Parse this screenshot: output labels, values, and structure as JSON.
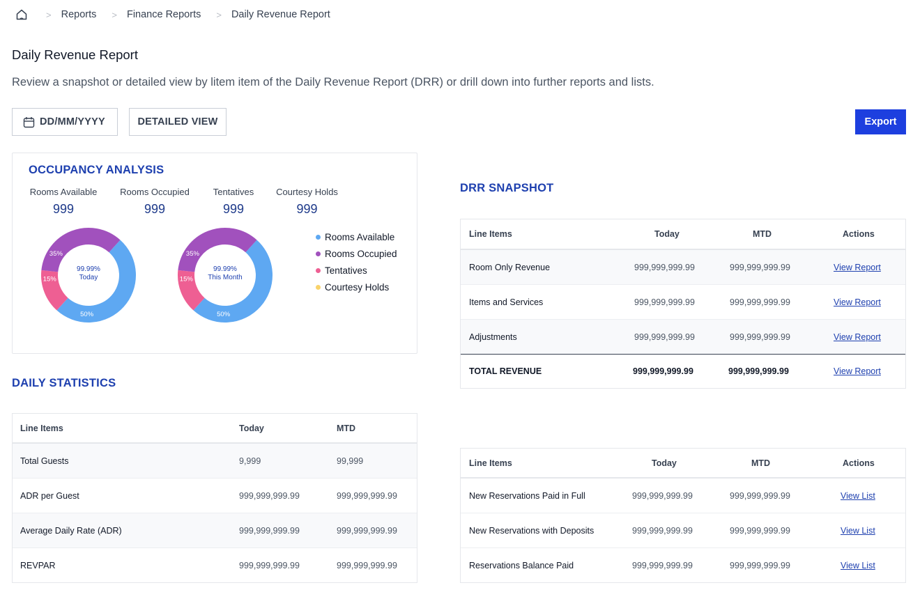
{
  "breadcrumb": {
    "items": [
      "Reports",
      "Finance Reports",
      "Daily Revenue Report"
    ]
  },
  "page": {
    "title": "Daily Revenue Report",
    "description": "Review a snapshot or detailed view by litem item of the Daily Revenue Report (DRR) or drill down into further reports and lists."
  },
  "toolbar": {
    "date_placeholder": "DD/MM/YYYY",
    "detailed_view_label": "DETAILED VIEW",
    "export_label": "Export"
  },
  "occupancy": {
    "title": "OCCUPANCY ANALYSIS",
    "stats": [
      {
        "label": "Rooms Available",
        "value": "999"
      },
      {
        "label": "Rooms Occupied",
        "value": "999"
      },
      {
        "label": "Tentatives",
        "value": "999"
      },
      {
        "label": "Courtesy Holds",
        "value": "999"
      }
    ],
    "donuts": [
      {
        "center_value": "99.99%",
        "center_label": "Today",
        "labels": {
          "occupied": "35%",
          "tentatives": "15%",
          "available": "50%"
        }
      },
      {
        "center_value": "99.99%",
        "center_label": "This Month",
        "labels": {
          "occupied": "35%",
          "tentatives": "15%",
          "available": "50%"
        }
      }
    ],
    "legend": [
      {
        "label": "Rooms Available",
        "color": "#5ea8f2"
      },
      {
        "label": "Rooms Occupied",
        "color": "#a151bd"
      },
      {
        "label": "Tentatives",
        "color": "#ee5f93"
      },
      {
        "label": "Courtesy Holds",
        "color": "#f9d36b"
      }
    ],
    "segments": {
      "available": 50,
      "occupied": 35,
      "tentatives": 15,
      "courtesy_holds": 0
    }
  },
  "drr_snapshot": {
    "title": "DRR SNAPSHOT",
    "headers": [
      "Line Items",
      "Today",
      "MTD",
      "Actions"
    ],
    "rows": [
      {
        "item": "Room Only Revenue",
        "today": "999,999,999.99",
        "mtd": "999,999,999.99",
        "action": "View Report"
      },
      {
        "item": "Items and Services",
        "today": "999,999,999.99",
        "mtd": "999,999,999.99",
        "action": "View Report"
      },
      {
        "item": "Adjustments",
        "today": "999,999,999.99",
        "mtd": "999,999,999.99",
        "action": "View Report"
      },
      {
        "item": "TOTAL REVENUE",
        "today": "999,999,999.99",
        "mtd": "999,999,999.99",
        "action": "View Report"
      }
    ]
  },
  "daily_statistics": {
    "title": "DAILY STATISTICS",
    "headers": [
      "Line Items",
      "Today",
      "MTD"
    ],
    "rows": [
      {
        "item": "Total Guests",
        "today": "9,999",
        "mtd": "99,999"
      },
      {
        "item": "ADR per Guest",
        "today": "999,999,999.99",
        "mtd": "999,999,999.99"
      },
      {
        "item": "Average Daily Rate (ADR)",
        "today": "999,999,999.99",
        "mtd": "999,999,999.99"
      },
      {
        "item": "REVPAR",
        "today": "999,999,999.99",
        "mtd": "999,999,999.99"
      }
    ]
  },
  "reservations": {
    "headers": [
      "Line Items",
      "Today",
      "MTD",
      "Actions"
    ],
    "rows": [
      {
        "item": "New Reservations Paid in Full",
        "today": "999,999,999.99",
        "mtd": "999,999,999.99",
        "action": "View List"
      },
      {
        "item": "New Reservations with Deposits",
        "today": "999,999,999.99",
        "mtd": "999,999,999.99",
        "action": "View List"
      },
      {
        "item": "Reservations Balance Paid",
        "today": "999,999,999.99",
        "mtd": "999,999,999.99",
        "action": "View List"
      }
    ]
  }
}
